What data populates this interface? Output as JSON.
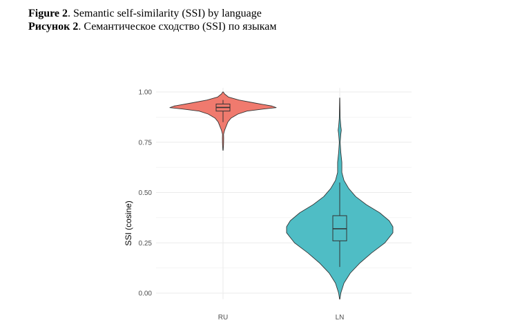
{
  "figure": {
    "caption_en_label": "Figure 2",
    "caption_en_text": ". Semantic self-similarity (SSI) by language",
    "caption_ru_label": "Рисунок 2",
    "caption_ru_text": ". Семантическое сходство (SSI) по языкам"
  },
  "chart_data": {
    "type": "violin",
    "title": "",
    "xlabel": "",
    "ylabel": "SSI (cosine)",
    "ylim": [
      -0.03,
      1.02
    ],
    "y_ticks": [
      0.0,
      0.25,
      0.5,
      0.75,
      1.0
    ],
    "y_tick_labels": [
      "0.00",
      "0.25",
      "0.50",
      "0.75",
      "1.00"
    ],
    "grid": true,
    "legend": "none",
    "categories": [
      "RU",
      "LN"
    ],
    "series": [
      {
        "category": "RU",
        "color": "#F07A6E",
        "box": {
          "min": 0.85,
          "q1": 0.905,
          "median": 0.923,
          "q3": 0.94,
          "max": 0.96
        },
        "range": [
          0.71,
          1.0
        ],
        "density": [
          [
            0.71,
            0.003
          ],
          [
            0.74,
            0.01
          ],
          [
            0.77,
            0.012
          ],
          [
            0.79,
            0.01
          ],
          [
            0.81,
            0.03
          ],
          [
            0.83,
            0.06
          ],
          [
            0.85,
            0.09
          ],
          [
            0.87,
            0.15
          ],
          [
            0.89,
            0.28
          ],
          [
            0.905,
            0.45
          ],
          [
            0.915,
            0.76
          ],
          [
            0.922,
            1.0
          ],
          [
            0.93,
            0.92
          ],
          [
            0.945,
            0.6
          ],
          [
            0.96,
            0.3
          ],
          [
            0.975,
            0.1
          ],
          [
            0.99,
            0.03
          ],
          [
            1.0,
            0.004
          ]
        ]
      },
      {
        "category": "LN",
        "color": "#4FBDC5",
        "box": {
          "min": 0.13,
          "q1": 0.26,
          "median": 0.32,
          "q3": 0.385,
          "max": 0.55
        },
        "range": [
          -0.03,
          0.97
        ],
        "density": [
          [
            -0.03,
            0.003
          ],
          [
            0.0,
            0.02
          ],
          [
            0.05,
            0.08
          ],
          [
            0.1,
            0.2
          ],
          [
            0.15,
            0.38
          ],
          [
            0.2,
            0.6
          ],
          [
            0.25,
            0.85
          ],
          [
            0.3,
            1.0
          ],
          [
            0.33,
            1.0
          ],
          [
            0.36,
            0.93
          ],
          [
            0.4,
            0.75
          ],
          [
            0.44,
            0.5
          ],
          [
            0.48,
            0.3
          ],
          [
            0.52,
            0.17
          ],
          [
            0.56,
            0.08
          ],
          [
            0.6,
            0.04
          ],
          [
            0.65,
            0.04
          ],
          [
            0.7,
            0.02
          ],
          [
            0.75,
            0.008
          ],
          [
            0.79,
            0.02
          ],
          [
            0.81,
            0.03
          ],
          [
            0.83,
            0.02
          ],
          [
            0.87,
            0.008
          ],
          [
            0.92,
            0.005
          ],
          [
            0.97,
            0.002
          ]
        ]
      }
    ]
  }
}
